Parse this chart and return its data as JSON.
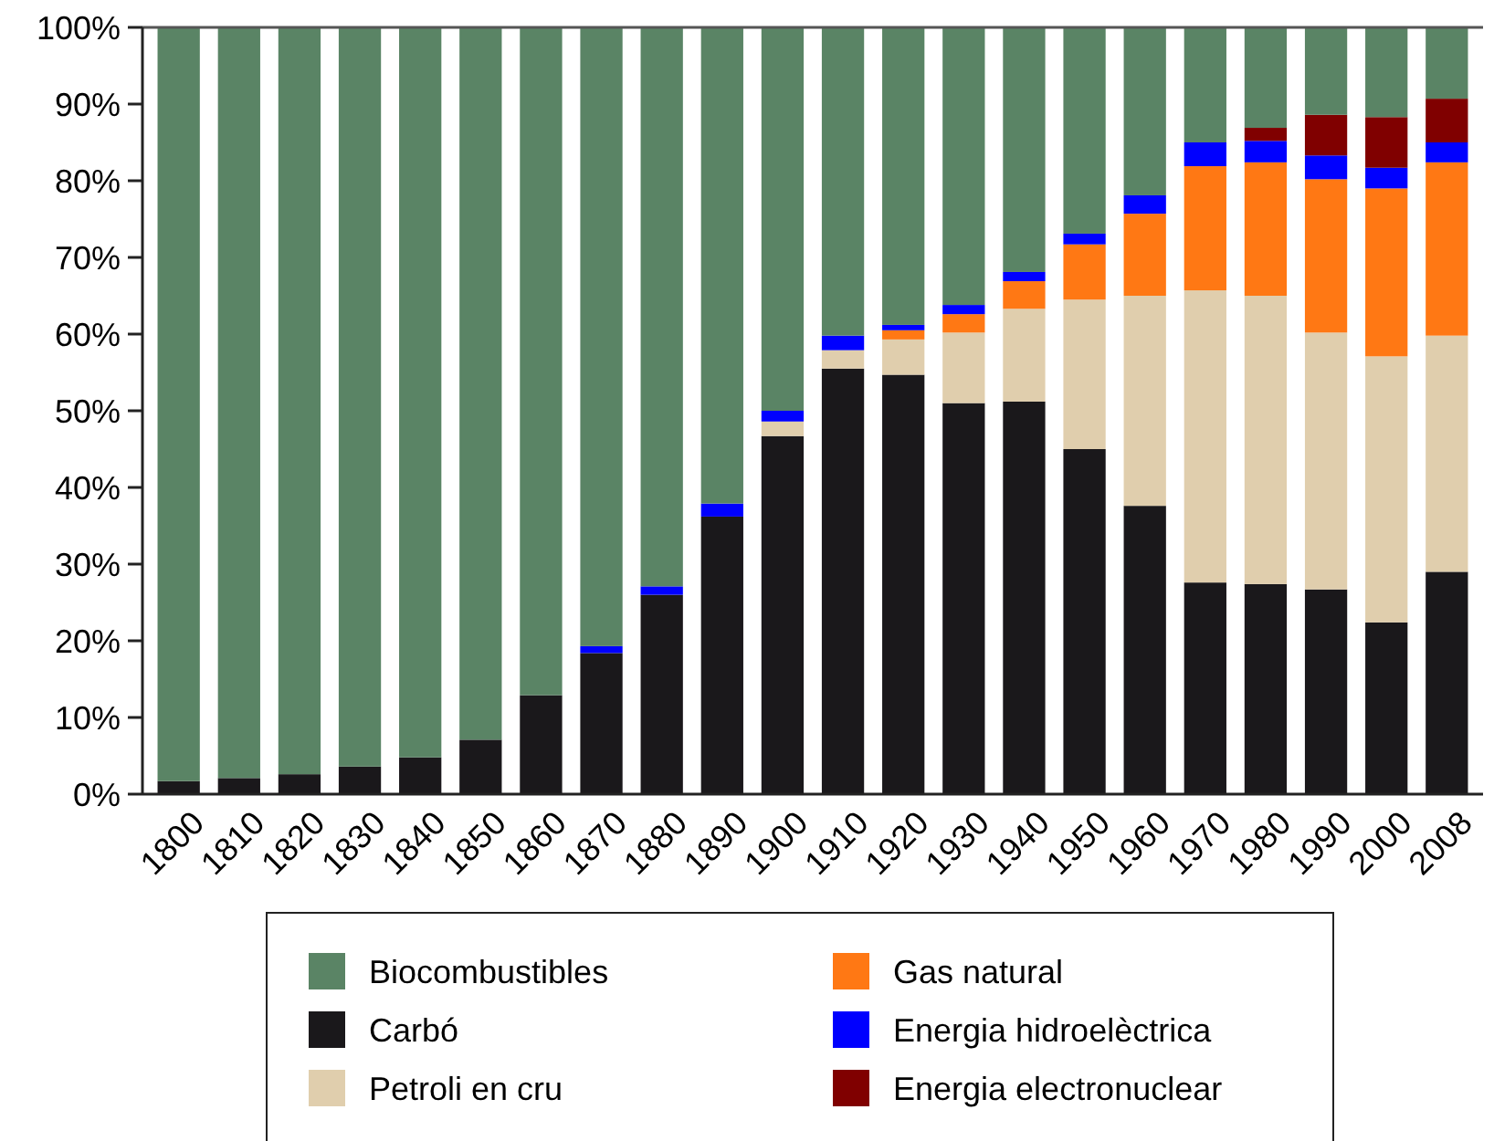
{
  "chart_data": {
    "type": "bar",
    "stacked": true,
    "categories": [
      "1800",
      "1810",
      "1820",
      "1830",
      "1840",
      "1850",
      "1860",
      "1870",
      "1880",
      "1890",
      "1900",
      "1910",
      "1920",
      "1930",
      "1940",
      "1950",
      "1960",
      "1970",
      "1980",
      "1990",
      "2000",
      "2008"
    ],
    "ylim": [
      0,
      100
    ],
    "yticks": [
      {
        "value": 0,
        "label": "0%"
      },
      {
        "value": 10,
        "label": "10%"
      },
      {
        "value": 20,
        "label": "20%"
      },
      {
        "value": 30,
        "label": "30%"
      },
      {
        "value": 40,
        "label": "40%"
      },
      {
        "value": 50,
        "label": "50%"
      },
      {
        "value": 60,
        "label": "60%"
      },
      {
        "value": 70,
        "label": "70%"
      },
      {
        "value": 80,
        "label": "80%"
      },
      {
        "value": 90,
        "label": "90%"
      },
      {
        "value": 100,
        "label": "100%"
      }
    ],
    "legend": "bottom",
    "series": [
      {
        "name": "Carbó",
        "color": "#1a181b",
        "values": [
          1.7,
          2.1,
          2.6,
          3.6,
          4.8,
          7.1,
          12.9,
          18.4,
          26.0,
          36.2,
          46.7,
          55.5,
          54.7,
          51.0,
          51.2,
          45.0,
          37.6,
          27.6,
          27.4,
          26.7,
          22.4,
          29.0
        ]
      },
      {
        "name": "Petroli en cru",
        "color": "#e0cead",
        "values": [
          0,
          0,
          0,
          0,
          0,
          0,
          0,
          0,
          0,
          0,
          1.9,
          2.4,
          4.6,
          9.2,
          12.1,
          19.5,
          27.4,
          38.1,
          37.6,
          33.5,
          34.7,
          30.8
        ]
      },
      {
        "name": "Gas natural",
        "color": "#ff7814",
        "values": [
          0,
          0,
          0,
          0,
          0,
          0,
          0,
          0,
          0,
          0,
          0,
          0,
          1.2,
          2.4,
          3.6,
          7.2,
          10.7,
          16.2,
          17.4,
          20.0,
          21.9,
          22.6
        ]
      },
      {
        "name": "Energia hidroelèctrica",
        "color": "#0000ff",
        "values": [
          0,
          0,
          0,
          0,
          0,
          0,
          0,
          0.9,
          1.1,
          1.7,
          1.4,
          1.9,
          0.7,
          1.2,
          1.2,
          1.4,
          2.4,
          3.1,
          2.8,
          3.1,
          2.7,
          2.6
        ]
      },
      {
        "name": "Energia electronuclear",
        "color": "#800000",
        "values": [
          0,
          0,
          0,
          0,
          0,
          0,
          0,
          0,
          0,
          0,
          0,
          0,
          0,
          0,
          0,
          0,
          0,
          0,
          1.7,
          5.3,
          6.6,
          5.7
        ]
      },
      {
        "name": "Biocombustibles",
        "color": "#5a8465",
        "values": [
          98.3,
          97.9,
          97.4,
          96.4,
          95.2,
          92.9,
          87.1,
          80.7,
          72.9,
          62.1,
          50.0,
          40.2,
          38.8,
          36.2,
          31.9,
          26.9,
          21.9,
          15.0,
          13.1,
          11.4,
          11.7,
          9.3
        ]
      }
    ]
  }
}
